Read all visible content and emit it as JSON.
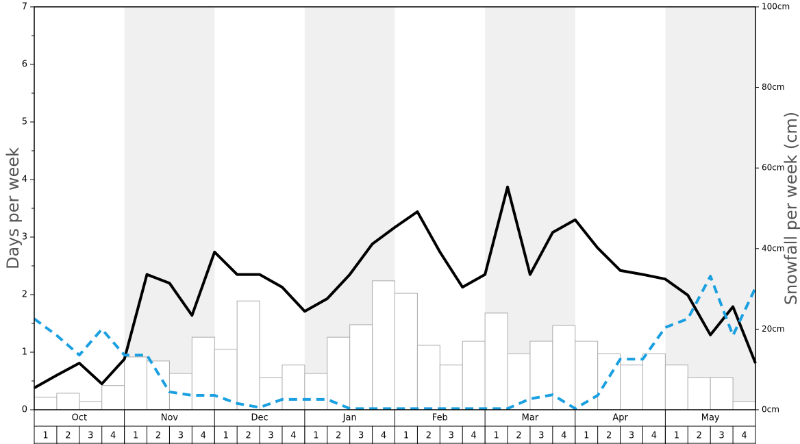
{
  "chart_data": {
    "type": "bar_line",
    "ylabel": "Days per week",
    "y2label": "Snowfall per week (cm)",
    "months": [
      "Oct",
      "Nov",
      "Dec",
      "Jan",
      "Feb",
      "Mar",
      "Apr",
      "May"
    ],
    "weeks": [
      "1",
      "2",
      "3",
      "4",
      "1",
      "2",
      "3",
      "4",
      "1",
      "2",
      "3",
      "4",
      "1",
      "2",
      "3",
      "4",
      "1",
      "2",
      "3",
      "4",
      "1",
      "2",
      "3",
      "4",
      "1",
      "2",
      "3",
      "4",
      "1",
      "2",
      "3",
      "4"
    ],
    "shading": true,
    "ylim": [
      0,
      7
    ],
    "yticks": [
      0,
      1,
      2,
      3,
      4,
      5,
      6,
      7
    ],
    "yminorticks": [
      0.5,
      1.5,
      2.5,
      3.5,
      4.5,
      5.5,
      6.5
    ],
    "y2lim": [
      0,
      100
    ],
    "y2ticks": [
      {
        "value": 0,
        "label": "0cm"
      },
      {
        "value": 20,
        "label": "20cm"
      },
      {
        "value": 40,
        "label": "40cm"
      },
      {
        "value": 60,
        "label": "60cm"
      },
      {
        "value": 80,
        "label": "80cm"
      },
      {
        "value": 100,
        "label": "100cm"
      }
    ],
    "xlim": [
      0,
      32
    ],
    "bars": {
      "axis": "y2",
      "color": "#ffffff",
      "stroke": "#aaaaaa",
      "values": [
        3.1,
        4.1,
        2.0,
        6.0,
        13.1,
        12.1,
        9.0,
        18.0,
        15.0,
        27.0,
        8.0,
        11.1,
        9.0,
        18.0,
        21.1,
        32.0,
        28.9,
        16.0,
        11.1,
        17.0,
        24.0,
        13.9,
        17.0,
        20.9,
        17.0,
        13.9,
        11.1,
        13.9,
        11.1,
        8.0,
        8.0,
        2.0
      ]
    },
    "x": [
      0,
      1,
      2,
      3,
      4,
      5,
      6,
      7,
      8,
      9,
      10,
      11,
      12,
      13,
      14,
      15,
      16,
      17,
      18,
      19,
      20,
      21,
      22,
      23,
      24,
      25,
      26,
      27,
      28,
      29,
      30,
      31,
      32
    ],
    "lines": [
      {
        "color": "#000000",
        "dashed": false,
        "values": [
          0.38,
          0.6,
          0.81,
          0.45,
          0.88,
          2.35,
          2.2,
          1.64,
          2.74,
          2.35,
          2.35,
          2.13,
          1.71,
          1.93,
          2.35,
          2.88,
          3.17,
          3.44,
          2.74,
          2.13,
          2.35,
          3.87,
          2.35,
          3.08,
          3.3,
          2.81,
          2.42,
          2.35,
          2.27,
          1.99,
          1.3,
          1.79,
          0.81
        ]
      },
      {
        "color": "#1a9fe0",
        "dashed": true,
        "values": [
          1.58,
          1.29,
          0.95,
          1.4,
          0.95,
          0.95,
          0.31,
          0.25,
          0.25,
          0.11,
          0.04,
          0.18,
          0.18,
          0.18,
          0.02,
          0.02,
          0.02,
          0.02,
          0.02,
          0.02,
          0.02,
          0.02,
          0.19,
          0.26,
          0.02,
          0.25,
          0.88,
          0.88,
          1.43,
          1.58,
          2.32,
          1.29,
          2.12
        ]
      }
    ]
  }
}
